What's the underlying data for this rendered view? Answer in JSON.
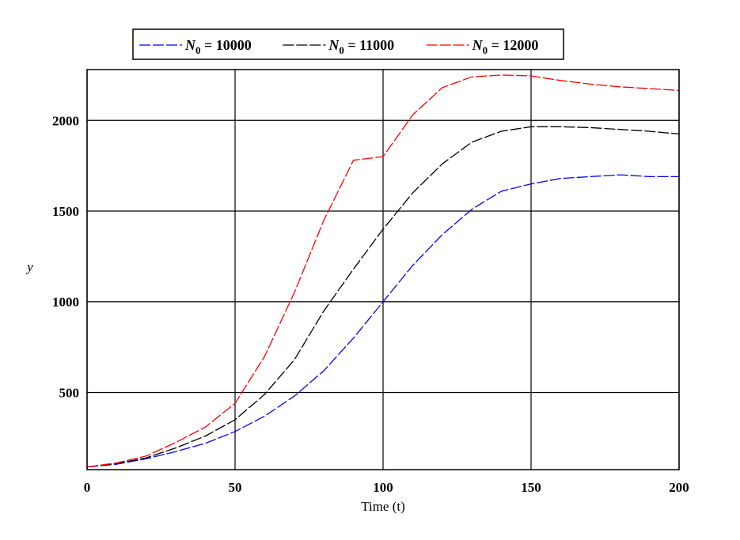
{
  "chart_data": {
    "type": "line",
    "title": "",
    "xlabel": "Time (t)",
    "ylabel": "y",
    "xlim": [
      0,
      200
    ],
    "ylim": [
      75,
      2280
    ],
    "x_ticks": [
      0,
      50,
      100,
      150,
      200
    ],
    "y_ticks": [
      500,
      1000,
      1500,
      2000
    ],
    "grid": true,
    "legend_position": "top-center",
    "x": [
      0,
      10,
      20,
      30,
      40,
      50,
      60,
      70,
      80,
      90,
      100,
      110,
      120,
      130,
      140,
      150,
      160,
      170,
      180,
      190,
      200
    ],
    "series": [
      {
        "name": "N0 = 10000",
        "legend_main": "N",
        "legend_sub": "0",
        "legend_rest": " = 10000",
        "color": "#0000ff",
        "values": [
          90,
          105,
          135,
          175,
          220,
          285,
          370,
          480,
          620,
          800,
          1000,
          1200,
          1370,
          1510,
          1610,
          1650,
          1680,
          1690,
          1700,
          1690,
          1690
        ]
      },
      {
        "name": "N0 = 11000",
        "legend_main": "N",
        "legend_sub": "0",
        "legend_rest": " = 11000",
        "color": "#000000",
        "values": [
          90,
          108,
          140,
          195,
          260,
          350,
          490,
          680,
          950,
          1180,
          1400,
          1600,
          1760,
          1880,
          1940,
          1965,
          1965,
          1960,
          1950,
          1940,
          1925
        ]
      },
      {
        "name": "N0 = 12000",
        "legend_main": "N",
        "legend_sub": "0",
        "legend_rest": " = 12000",
        "color": "#ff0000",
        "values": [
          90,
          112,
          150,
          225,
          310,
          440,
          700,
          1050,
          1450,
          1780,
          1800,
          2030,
          2180,
          2240,
          2250,
          2245,
          2220,
          2200,
          2185,
          2175,
          2165
        ]
      }
    ]
  }
}
